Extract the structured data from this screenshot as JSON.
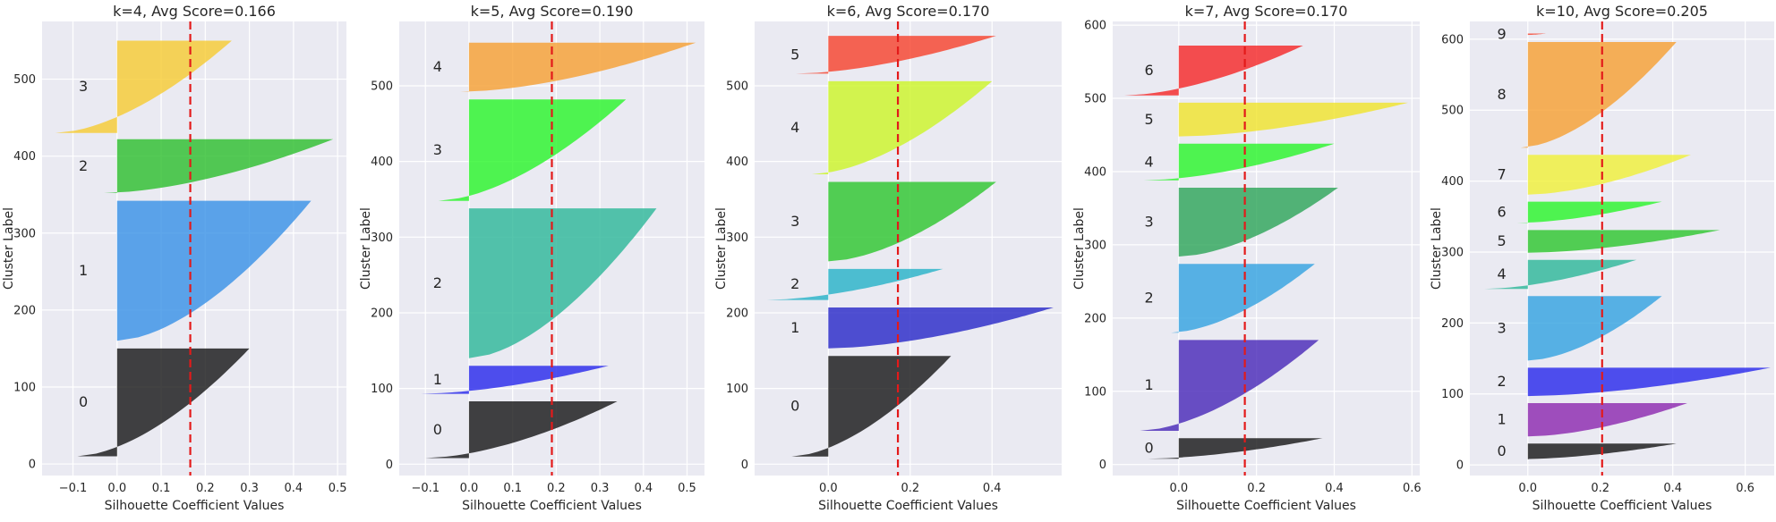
{
  "chart_data": [
    {
      "type": "area",
      "title": "k=4, Avg Score=0.166",
      "xlabel": "Silhouette Coefficient Values",
      "ylabel": "Cluster Label",
      "avg_score": 0.166,
      "xlim": [
        -0.17,
        0.52
      ],
      "ylim": [
        -15,
        575
      ],
      "xticks": [
        -0.1,
        0.0,
        0.1,
        0.2,
        0.3,
        0.4,
        0.5
      ],
      "xtick_labels": [
        "−0.1",
        "0.0",
        "0.1",
        "0.2",
        "0.3",
        "0.4",
        "0.5"
      ],
      "yticks": [
        0,
        100,
        200,
        300,
        400,
        500
      ],
      "yticks_labels": [
        "0",
        "100",
        "200",
        "300",
        "400",
        "500"
      ],
      "clusters": [
        {
          "label": "0",
          "y_start": 10,
          "y_end": 150,
          "min": -0.09,
          "max": 0.3,
          "color": "#1a1a1a"
        },
        {
          "label": "1",
          "y_start": 160,
          "y_end": 342,
          "min": 0.0,
          "max": 0.44,
          "color": "#3a93e6"
        },
        {
          "label": "2",
          "y_start": 352,
          "y_end": 422,
          "min": -0.03,
          "max": 0.49,
          "color": "#2fbf2f"
        },
        {
          "label": "3",
          "y_start": 430,
          "y_end": 550,
          "min": -0.14,
          "max": 0.26,
          "color": "#f6cc35"
        }
      ]
    },
    {
      "type": "area",
      "title": "k=5, Avg Score=0.190",
      "xlabel": "Silhouette Coefficient Values",
      "ylabel": "Cluster Label",
      "avg_score": 0.19,
      "xlim": [
        -0.16,
        0.54
      ],
      "ylim": [
        -15,
        585
      ],
      "xticks": [
        -0.1,
        0.0,
        0.1,
        0.2,
        0.3,
        0.4,
        0.5
      ],
      "xtick_labels": [
        "−0.1",
        "0.0",
        "0.1",
        "0.2",
        "0.3",
        "0.4",
        "0.5"
      ],
      "yticks": [
        0,
        100,
        200,
        300,
        400,
        500
      ],
      "yticks_labels": [
        "0",
        "100",
        "200",
        "300",
        "400",
        "500"
      ],
      "clusters": [
        {
          "label": "0",
          "y_start": 8,
          "y_end": 83,
          "min": -0.1,
          "max": 0.34,
          "color": "#1a1a1a"
        },
        {
          "label": "1",
          "y_start": 93,
          "y_end": 130,
          "min": -0.11,
          "max": 0.32,
          "color": "#2b2beb"
        },
        {
          "label": "2",
          "y_start": 140,
          "y_end": 338,
          "min": 0.0,
          "max": 0.43,
          "color": "#2fb89a"
        },
        {
          "label": "3",
          "y_start": 348,
          "y_end": 482,
          "min": -0.07,
          "max": 0.36,
          "color": "#2cf52c"
        },
        {
          "label": "4",
          "y_start": 492,
          "y_end": 557,
          "min": -0.02,
          "max": 0.52,
          "color": "#f7a135"
        }
      ]
    },
    {
      "type": "area",
      "title": "k=6, Avg Score=0.170",
      "xlabel": "Silhouette Coefficient Values",
      "ylabel": "Cluster Label",
      "avg_score": 0.17,
      "xlim": [
        -0.18,
        0.57
      ],
      "ylim": [
        -15,
        585
      ],
      "xticks": [
        0.0,
        0.2,
        0.4
      ],
      "xtick_labels": [
        "0.0",
        "0.2",
        "0.4"
      ],
      "yticks": [
        0,
        100,
        200,
        300,
        400,
        500
      ],
      "yticks_labels": [
        "0",
        "100",
        "200",
        "300",
        "400",
        "500"
      ],
      "clusters": [
        {
          "label": "0",
          "y_start": 10,
          "y_end": 143,
          "min": -0.09,
          "max": 0.3,
          "color": "#1a1a1a"
        },
        {
          "label": "1",
          "y_start": 153,
          "y_end": 207,
          "min": 0.0,
          "max": 0.55,
          "color": "#2b2bc8"
        },
        {
          "label": "2",
          "y_start": 217,
          "y_end": 258,
          "min": -0.15,
          "max": 0.28,
          "color": "#2ab3c8"
        },
        {
          "label": "3",
          "y_start": 268,
          "y_end": 373,
          "min": 0.0,
          "max": 0.41,
          "color": "#2fc72f"
        },
        {
          "label": "4",
          "y_start": 383,
          "y_end": 506,
          "min": -0.04,
          "max": 0.4,
          "color": "#cdf52a"
        },
        {
          "label": "5",
          "y_start": 516,
          "y_end": 566,
          "min": -0.08,
          "max": 0.41,
          "color": "#f7442e"
        }
      ]
    },
    {
      "type": "area",
      "title": "k=7, Avg Score=0.170",
      "xlabel": "Silhouette Coefficient Values",
      "ylabel": "Cluster Label",
      "avg_score": 0.17,
      "xlim": [
        -0.17,
        0.62
      ],
      "ylim": [
        -15,
        605
      ],
      "xticks": [
        0.0,
        0.2,
        0.4,
        0.6
      ],
      "xtick_labels": [
        "0.0",
        "0.2",
        "0.4",
        "0.6"
      ],
      "yticks": [
        0,
        100,
        200,
        300,
        400,
        500,
        600
      ],
      "yticks_labels": [
        "0",
        "100",
        "200",
        "300",
        "400",
        "500",
        "600"
      ],
      "clusters": [
        {
          "label": "0",
          "y_start": 8,
          "y_end": 36,
          "min": -0.08,
          "max": 0.37,
          "color": "#1a1a1a"
        },
        {
          "label": "1",
          "y_start": 46,
          "y_end": 170,
          "min": -0.1,
          "max": 0.36,
          "color": "#4a2bb8"
        },
        {
          "label": "2",
          "y_start": 180,
          "y_end": 274,
          "min": -0.02,
          "max": 0.35,
          "color": "#36a4e0"
        },
        {
          "label": "3",
          "y_start": 284,
          "y_end": 378,
          "min": 0.0,
          "max": 0.41,
          "color": "#2fa65a"
        },
        {
          "label": "4",
          "y_start": 388,
          "y_end": 438,
          "min": -0.09,
          "max": 0.4,
          "color": "#2cf52c"
        },
        {
          "label": "5",
          "y_start": 448,
          "y_end": 494,
          "min": 0.0,
          "max": 0.59,
          "color": "#f0e42e"
        },
        {
          "label": "6",
          "y_start": 504,
          "y_end": 572,
          "min": -0.14,
          "max": 0.32,
          "color": "#f52a2a"
        }
      ]
    },
    {
      "type": "area",
      "title": "k=10, Avg Score=0.205",
      "xlabel": "Silhouette Coefficient Values",
      "ylabel": "Cluster Label",
      "avg_score": 0.205,
      "xlim": [
        -0.16,
        0.68
      ],
      "ylim": [
        -15,
        625
      ],
      "xticks": [
        0.0,
        0.2,
        0.4,
        0.6
      ],
      "xtick_labels": [
        "0.0",
        "0.2",
        "0.4",
        "0.6"
      ],
      "yticks": [
        0,
        100,
        200,
        300,
        400,
        500,
        600
      ],
      "yticks_labels": [
        "0",
        "100",
        "200",
        "300",
        "400",
        "500",
        "600"
      ],
      "clusters": [
        {
          "label": "0",
          "y_start": 8,
          "y_end": 30,
          "min": -0.02,
          "max": 0.41,
          "color": "#1a1a1a"
        },
        {
          "label": "1",
          "y_start": 40,
          "y_end": 87,
          "min": 0.0,
          "max": 0.44,
          "color": "#8d2bb0"
        },
        {
          "label": "2",
          "y_start": 97,
          "y_end": 137,
          "min": 0.0,
          "max": 0.67,
          "color": "#2b2beb"
        },
        {
          "label": "3",
          "y_start": 147,
          "y_end": 238,
          "min": 0.0,
          "max": 0.37,
          "color": "#36a4e0"
        },
        {
          "label": "4",
          "y_start": 248,
          "y_end": 289,
          "min": -0.12,
          "max": 0.3,
          "color": "#2fb89a"
        },
        {
          "label": "5",
          "y_start": 299,
          "y_end": 331,
          "min": 0.0,
          "max": 0.53,
          "color": "#2fc72f"
        },
        {
          "label": "6",
          "y_start": 341,
          "y_end": 371,
          "min": -0.03,
          "max": 0.37,
          "color": "#2cf52c"
        },
        {
          "label": "7",
          "y_start": 381,
          "y_end": 437,
          "min": 0.0,
          "max": 0.45,
          "color": "#f0f03a"
        },
        {
          "label": "8",
          "y_start": 447,
          "y_end": 596,
          "min": -0.02,
          "max": 0.41,
          "color": "#f7a135"
        },
        {
          "label": "9",
          "y_start": 606,
          "y_end": 608,
          "min": 0.0,
          "max": 0.05,
          "color": "#f7442e"
        }
      ]
    }
  ]
}
